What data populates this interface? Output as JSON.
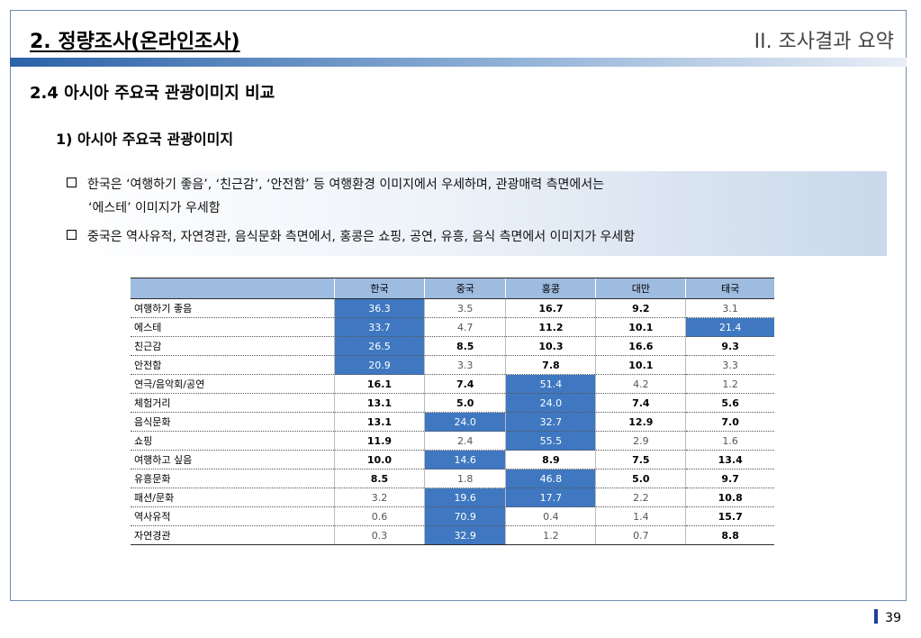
{
  "header": {
    "title": "2. 정량조사(온라인조사)",
    "section": "II. 조사결과 요약"
  },
  "subtitle": "2.4 아시아 주요국 관광이미지 비교",
  "subsubtitle": "1) 아시아 주요국 관광이미지",
  "bullets": {
    "line1": "한국은 ‘여행하기 좋음’, ‘친근감’, ‘안전함’ 등 여행환경 이미지에서 우세하며, 관광매력 측면에서는",
    "line1_cont": "‘에스테’ 이미지가 우세함",
    "line2": "중국은 역사유적, 자연경관, 음식문화 측면에서, 홍콩은 쇼핑, 공연, 유흥, 음식 측면에서 이미지가 우세함"
  },
  "table": {
    "columns": [
      "한국",
      "중국",
      "홍콩",
      "대만",
      "태국"
    ],
    "rows": [
      {
        "label": "여행하기 좋음",
        "values": [
          "36.3",
          "3.5",
          "16.7",
          "9.2",
          "3.1"
        ],
        "highlight": [
          0
        ]
      },
      {
        "label": "에스테",
        "values": [
          "33.7",
          "4.7",
          "11.2",
          "10.1",
          "21.4"
        ],
        "highlight": [
          0,
          4
        ]
      },
      {
        "label": "친근감",
        "values": [
          "26.5",
          "8.5",
          "10.3",
          "16.6",
          "9.3"
        ],
        "highlight": [
          0
        ]
      },
      {
        "label": "안전함",
        "values": [
          "20.9",
          "3.3",
          "7.8",
          "10.1",
          "3.3"
        ],
        "highlight": [
          0
        ]
      },
      {
        "label": "연극/음악회/공연",
        "values": [
          "16.1",
          "7.4",
          "51.4",
          "4.2",
          "1.2"
        ],
        "highlight": [
          2
        ]
      },
      {
        "label": "체험거리",
        "values": [
          "13.1",
          "5.0",
          "24.0",
          "7.4",
          "5.6"
        ],
        "highlight": [
          2
        ]
      },
      {
        "label": "음식문화",
        "values": [
          "13.1",
          "24.0",
          "32.7",
          "12.9",
          "7.0"
        ],
        "highlight": [
          1,
          2
        ]
      },
      {
        "label": "쇼핑",
        "values": [
          "11.9",
          "2.4",
          "55.5",
          "2.9",
          "1.6"
        ],
        "highlight": [
          2
        ]
      },
      {
        "label": "여행하고 싶음",
        "values": [
          "10.0",
          "14.6",
          "8.9",
          "7.5",
          "13.4"
        ],
        "highlight": [
          1
        ]
      },
      {
        "label": "유흥문화",
        "values": [
          "8.5",
          "1.8",
          "46.8",
          "5.0",
          "9.7"
        ],
        "highlight": [
          2
        ]
      },
      {
        "label": "패션/문화",
        "values": [
          "3.2",
          "19.6",
          "17.7",
          "2.2",
          "10.8"
        ],
        "highlight": [
          1,
          2
        ]
      },
      {
        "label": "역사유적",
        "values": [
          "0.6",
          "70.9",
          "0.4",
          "1.4",
          "15.7"
        ],
        "highlight": [
          1
        ]
      },
      {
        "label": "자연경관",
        "values": [
          "0.3",
          "32.9",
          "1.2",
          "0.7",
          "8.8"
        ],
        "highlight": [
          1
        ]
      }
    ],
    "highlight_color": "#3f78c0",
    "header_color": "#9ebbe0"
  },
  "page_number": "39"
}
